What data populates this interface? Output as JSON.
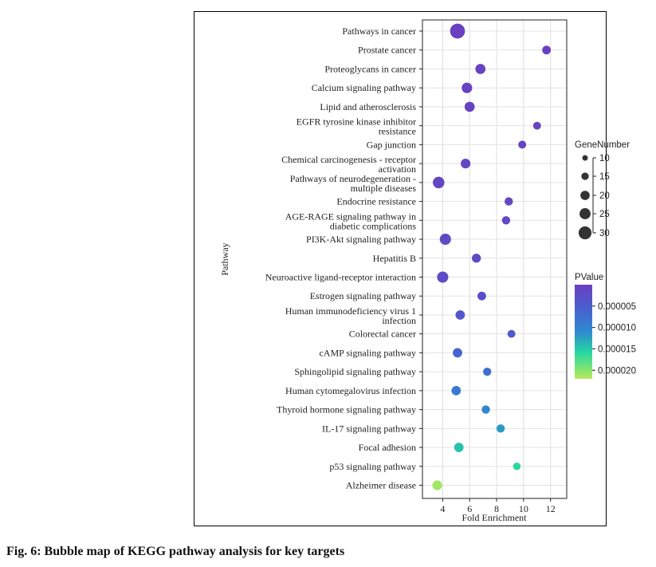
{
  "figure": {
    "caption": "Fig. 6: Bubble map of KEGG pathway analysis for key targets"
  },
  "colors": {
    "low_p": "#6a3fbf",
    "mid_p": "#2e78c9",
    "high_p": "#b8ea5a",
    "bubble_legend": "#333333",
    "grid": "#dddddd"
  },
  "chart_data": {
    "type": "scatter",
    "subtype": "bubble",
    "xlabel": "Fold Enrichment",
    "ylabel": "Pathway",
    "xlim": [
      2.5,
      13.2
    ],
    "xticks": [
      4,
      6,
      8,
      10,
      12
    ],
    "grid": true,
    "size_legend": {
      "title": "GeneNumber",
      "values": [
        10,
        15,
        20,
        25,
        30
      ],
      "labels": [
        "10",
        "15",
        "20",
        "25",
        "30"
      ]
    },
    "color_legend": {
      "title": "PValue",
      "range": [
        0,
        2.2e-05
      ],
      "ticks": [
        5e-06,
        1e-05,
        1.5e-05,
        2e-05
      ],
      "tick_labels": [
        "0.000005",
        "0.000010",
        "0.000015",
        "0.000020"
      ]
    },
    "points": [
      {
        "pathway": [
          "Pathways in cancer"
        ],
        "fold_enrichment": 5.1,
        "gene_number": 31,
        "p_value": 2e-07
      },
      {
        "pathway": [
          "Prostate cancer"
        ],
        "fold_enrichment": 11.7,
        "gene_number": 14,
        "p_value": 3e-07
      },
      {
        "pathway": [
          "Proteoglycans in cancer"
        ],
        "fold_enrichment": 6.8,
        "gene_number": 18,
        "p_value": 5e-07
      },
      {
        "pathway": [
          "Calcium signaling pathway"
        ],
        "fold_enrichment": 5.8,
        "gene_number": 19,
        "p_value": 6e-07
      },
      {
        "pathway": [
          "Lipid and atherosclerosis"
        ],
        "fold_enrichment": 6.0,
        "gene_number": 18,
        "p_value": 7e-07
      },
      {
        "pathway": [
          "EGFR tyrosine kinase inhibitor",
          "resistance"
        ],
        "fold_enrichment": 11.0,
        "gene_number": 12,
        "p_value": 8e-07
      },
      {
        "pathway": [
          "Gap junction"
        ],
        "fold_enrichment": 9.9,
        "gene_number": 12,
        "p_value": 9e-07
      },
      {
        "pathway": [
          "Chemical carcinogenesis - receptor",
          "activation"
        ],
        "fold_enrichment": 5.7,
        "gene_number": 17,
        "p_value": 1e-06
      },
      {
        "pathway": [
          "Pathways of neurodegeneration -",
          "multiple diseases"
        ],
        "fold_enrichment": 3.7,
        "gene_number": 22,
        "p_value": 1.1e-06
      },
      {
        "pathway": [
          "Endocrine resistance"
        ],
        "fold_enrichment": 8.9,
        "gene_number": 13,
        "p_value": 1.3e-06
      },
      {
        "pathway": [
          "AGE-RAGE signaling pathway in",
          "diabetic complications"
        ],
        "fold_enrichment": 8.7,
        "gene_number": 13,
        "p_value": 1.5e-06
      },
      {
        "pathway": [
          "PI3K-Akt signaling pathway"
        ],
        "fold_enrichment": 4.2,
        "gene_number": 21,
        "p_value": 1.7e-06
      },
      {
        "pathway": [
          "Hepatitis B"
        ],
        "fold_enrichment": 6.5,
        "gene_number": 15,
        "p_value": 1.9e-06
      },
      {
        "pathway": [
          "Neuroactive ligand-receptor interaction"
        ],
        "fold_enrichment": 4.0,
        "gene_number": 21,
        "p_value": 2.2e-06
      },
      {
        "pathway": [
          "Estrogen signaling pathway"
        ],
        "fold_enrichment": 6.9,
        "gene_number": 14,
        "p_value": 2.8e-06
      },
      {
        "pathway": [
          "Human immunodeficiency virus 1",
          "infection"
        ],
        "fold_enrichment": 5.3,
        "gene_number": 16,
        "p_value": 3.8e-06
      },
      {
        "pathway": [
          "Colorectal cancer"
        ],
        "fold_enrichment": 9.1,
        "gene_number": 12,
        "p_value": 4.5e-06
      },
      {
        "pathway": [
          "cAMP signaling pathway"
        ],
        "fold_enrichment": 5.1,
        "gene_number": 16,
        "p_value": 6e-06
      },
      {
        "pathway": [
          "Sphingolipid signaling pathway"
        ],
        "fold_enrichment": 7.3,
        "gene_number": 13,
        "p_value": 7.5e-06
      },
      {
        "pathway": [
          "Human cytomegalovirus infection"
        ],
        "fold_enrichment": 5.0,
        "gene_number": 16,
        "p_value": 9e-06
      },
      {
        "pathway": [
          "Thyroid hormone signaling pathway"
        ],
        "fold_enrichment": 7.2,
        "gene_number": 13,
        "p_value": 1.05e-05
      },
      {
        "pathway": [
          "IL-17 signaling pathway"
        ],
        "fold_enrichment": 8.3,
        "gene_number": 13,
        "p_value": 1.2e-05
      },
      {
        "pathway": [
          "Focal adhesion"
        ],
        "fold_enrichment": 5.2,
        "gene_number": 16,
        "p_value": 1.45e-05
      },
      {
        "pathway": [
          "p53 signaling pathway"
        ],
        "fold_enrichment": 9.5,
        "gene_number": 11,
        "p_value": 1.6e-05
      },
      {
        "pathway": [
          "Alzheimer disease"
        ],
        "fold_enrichment": 3.6,
        "gene_number": 17,
        "p_value": 2.1e-05
      }
    ]
  }
}
